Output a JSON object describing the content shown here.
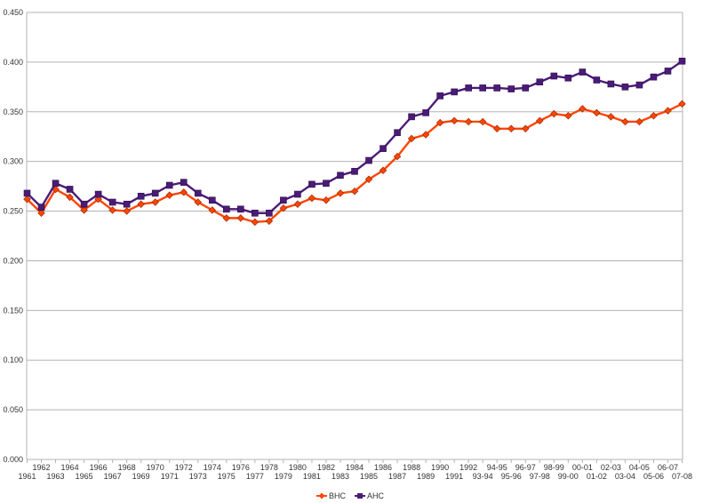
{
  "chart_data": {
    "type": "line",
    "title": "",
    "xlabel": "",
    "ylabel": "",
    "ylim": [
      0,
      0.45
    ],
    "y_ticks": [
      "0.000",
      "0.050",
      "0.100",
      "0.150",
      "0.200",
      "0.250",
      "0.300",
      "0.350",
      "0.400",
      "0.450"
    ],
    "grid": "horizontal",
    "legend_position": "bottom",
    "categories": [
      "1961",
      "1962",
      "1963",
      "1964",
      "1965",
      "1966",
      "1967",
      "1968",
      "1969",
      "1970",
      "1971",
      "1972",
      "1973",
      "1974",
      "1975",
      "1976",
      "1977",
      "1978",
      "1979",
      "1980",
      "1981",
      "1982",
      "1983",
      "1984",
      "1985",
      "1986",
      "1987",
      "1988",
      "1989",
      "1990",
      "1991",
      "1992",
      "93-94",
      "94-95",
      "95-96",
      "96-97",
      "97-98",
      "98-99",
      "99-00",
      "00-01",
      "01-02",
      "02-03",
      "03-04",
      "04-05",
      "05-06",
      "06-07",
      "07-08"
    ],
    "series": [
      {
        "name": "BHC",
        "color": "#ff4500",
        "marker": "diamond",
        "values": [
          0.262,
          0.248,
          0.272,
          0.264,
          0.251,
          0.262,
          0.251,
          0.25,
          0.257,
          0.259,
          0.266,
          0.269,
          0.259,
          0.251,
          0.243,
          0.243,
          0.239,
          0.24,
          0.253,
          0.257,
          0.263,
          0.261,
          0.268,
          0.27,
          0.282,
          0.291,
          0.305,
          0.323,
          0.327,
          0.339,
          0.341,
          0.34,
          0.34,
          0.333,
          0.333,
          0.333,
          0.341,
          0.348,
          0.346,
          0.353,
          0.349,
          0.345,
          0.34,
          0.34,
          0.346,
          0.351,
          0.358
        ]
      },
      {
        "name": "AHC",
        "color": "#4b1b78",
        "marker": "square",
        "values": [
          0.268,
          0.254,
          0.278,
          0.272,
          0.257,
          0.267,
          0.259,
          0.257,
          0.265,
          0.268,
          0.276,
          0.279,
          0.268,
          0.261,
          0.252,
          0.252,
          0.248,
          0.248,
          0.261,
          0.267,
          0.277,
          0.278,
          0.286,
          0.29,
          0.301,
          0.313,
          0.329,
          0.345,
          0.349,
          0.366,
          0.37,
          0.374,
          0.374,
          0.374,
          0.373,
          0.374,
          0.38,
          0.386,
          0.384,
          0.39,
          0.382,
          0.378,
          0.375,
          0.377,
          0.385,
          0.391,
          0.401
        ]
      }
    ]
  }
}
